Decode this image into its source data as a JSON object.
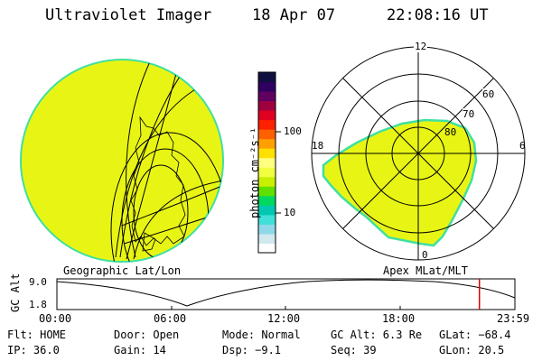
{
  "header": {
    "instrument": "Ultraviolet Imager",
    "date": "18 Apr 07",
    "time": "22:08:16 UT"
  },
  "colorbar": {
    "unit_label": "photon cm⁻²s⁻¹",
    "tick_100": "100",
    "tick_10": "10",
    "colors": [
      "#ffffff",
      "#d0e8ee",
      "#8fd8e8",
      "#40e0d8",
      "#00c8b0",
      "#00d860",
      "#60e000",
      "#c8f000",
      "#f0ff40",
      "#ffff80",
      "#ffe000",
      "#ffa000",
      "#ff6000",
      "#ff2000",
      "#e00020",
      "#a00040",
      "#600060",
      "#300060",
      "#101040"
    ]
  },
  "geo_panel": {
    "caption": "Geographic Lat/Lon",
    "fill_color": "#e8f514",
    "edge_color": "#40e0a0"
  },
  "polar_panel": {
    "caption": "Apex MLat/MLT",
    "mlt_top": "12",
    "mlt_left": "18",
    "mlt_right": "6",
    "mlt_bottom": "0",
    "ring_60": "60",
    "ring_70": "70",
    "ring_80": "80"
  },
  "altitude_plot": {
    "ylabel": "GC Alt",
    "y_top": "9.0",
    "y_bottom": "1.8",
    "x_ticks": [
      "00:00",
      "06:00",
      "12:00",
      "18:00",
      "23:59"
    ],
    "marker_color": "#e00000",
    "marker_time_hours": 22.14
  },
  "status": {
    "filter": "Flt: HOME",
    "door": "Door: Open",
    "mode": "Mode: Normal",
    "gc_alt": "GC Alt: 6.3 Re",
    "glat": "GLat: −68.4",
    "ip": "IP: 36.0",
    "gain": "Gain: 14",
    "dsp": "Dsp:   −9.1",
    "seq": "Seq: 39",
    "glon": "GLon:  20.5"
  }
}
